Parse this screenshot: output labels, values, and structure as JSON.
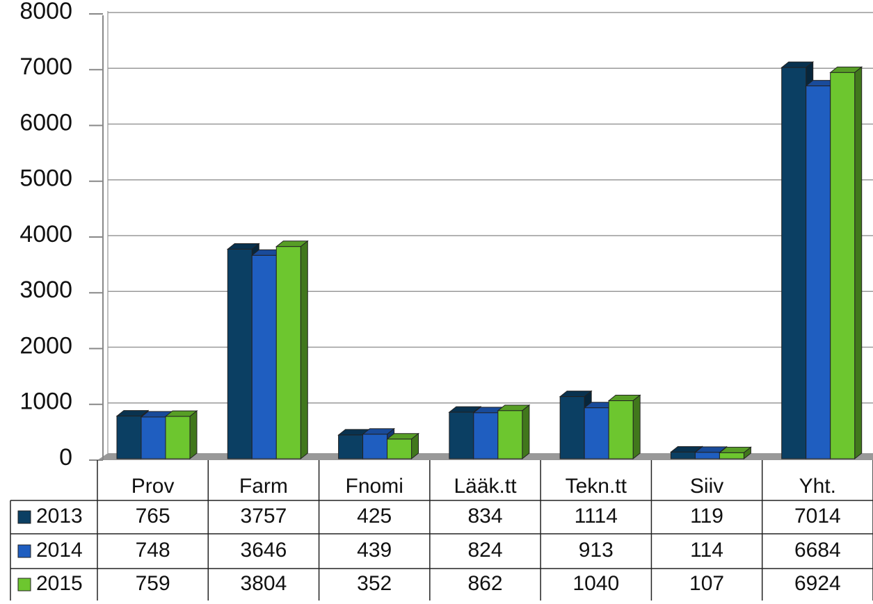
{
  "chart_data": {
    "type": "bar",
    "categories": [
      "Prov",
      "Farm",
      "Fnomi",
      "Lääk.tt",
      "Tekn.tt",
      "Siiv",
      "Yht."
    ],
    "series": [
      {
        "name": "2013",
        "color": "#0b3f63",
        "values": [
          765,
          3757,
          425,
          834,
          1114,
          119,
          7014
        ]
      },
      {
        "name": "2014",
        "color": "#1f5ec0",
        "values": [
          748,
          3646,
          439,
          824,
          913,
          114,
          6684
        ]
      },
      {
        "name": "2015",
        "color": "#6dc62f",
        "values": [
          759,
          3804,
          352,
          862,
          1040,
          107,
          6924
        ]
      }
    ],
    "ylim": [
      0,
      8000
    ],
    "yticks": [
      0,
      1000,
      2000,
      3000,
      4000,
      5000,
      6000,
      7000,
      8000
    ],
    "grid": true
  }
}
